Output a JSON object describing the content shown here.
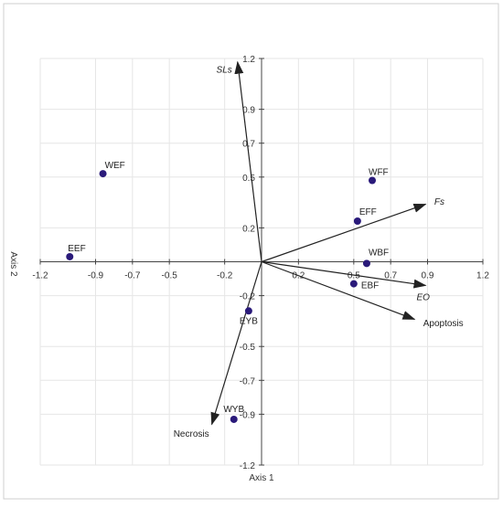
{
  "chart_data": {
    "type": "scatter",
    "subtype": "biplot",
    "x_axis_label": "Axis 1",
    "y_axis_label": "Axis 2",
    "xlim": [
      -1.2,
      1.2
    ],
    "ylim": [
      -1.2,
      1.2
    ],
    "x_ticks": [
      "-1.2",
      "-0.9",
      "-0.7",
      "-0.5",
      "-0.2",
      "0.2",
      "0.5",
      "0.7",
      "0.9",
      "1.2"
    ],
    "y_ticks": [
      "1.2",
      "0.9",
      "0.7",
      "0.5",
      "0.2",
      "-0.2",
      "-0.5",
      "-0.7",
      "-0.9",
      "-1.2"
    ],
    "grid": true,
    "points": [
      {
        "label": "WEF",
        "x": -0.86,
        "y": 0.52
      },
      {
        "label": "EEF",
        "x": -1.04,
        "y": 0.03
      },
      {
        "label": "WFF",
        "x": 0.6,
        "y": 0.48
      },
      {
        "label": "EFF",
        "x": 0.52,
        "y": 0.24
      },
      {
        "label": "WBF",
        "x": 0.57,
        "y": -0.01
      },
      {
        "label": "EBF",
        "x": 0.5,
        "y": -0.13
      },
      {
        "label": "EYB",
        "x": -0.07,
        "y": -0.29
      },
      {
        "label": "WYB",
        "x": -0.15,
        "y": -0.93
      }
    ],
    "vectors": [
      {
        "label": "SLs",
        "x": -0.13,
        "y": 1.18
      },
      {
        "label": "Fs",
        "x": 0.89,
        "y": 0.34
      },
      {
        "label": "EO",
        "x": 0.89,
        "y": -0.14
      },
      {
        "label": "Apoptosis",
        "x": 0.83,
        "y": -0.34
      },
      {
        "label": "Necrosis",
        "x": -0.27,
        "y": -0.96
      }
    ],
    "point_color": "#2a1a7a",
    "vector_color": "#222222"
  }
}
